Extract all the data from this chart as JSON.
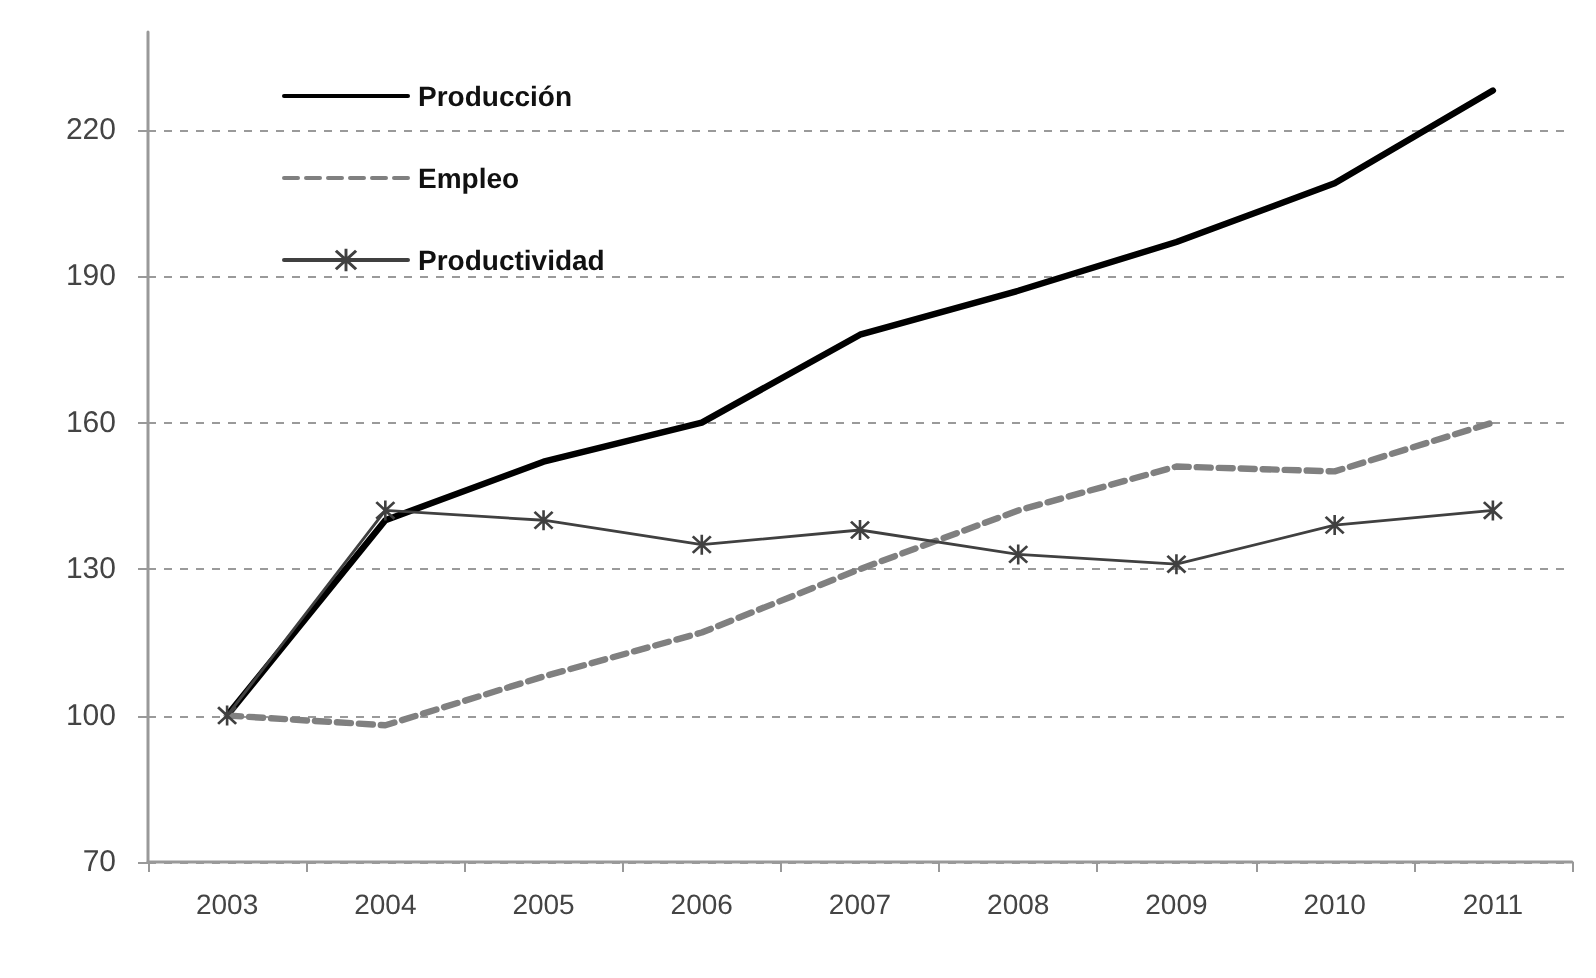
{
  "chart_data": {
    "type": "line",
    "categories": [
      "2003",
      "2004",
      "2005",
      "2006",
      "2007",
      "2008",
      "2009",
      "2010",
      "2011"
    ],
    "ylim": [
      70,
      240
    ],
    "yticks": [
      70,
      100,
      130,
      160,
      190,
      220
    ],
    "grid": "y",
    "legend": "top left",
    "series": [
      {
        "name": "Producción",
        "color": "#000000",
        "line_style": "solid",
        "marker": "none",
        "values": [
          100,
          140,
          152,
          160,
          178,
          187,
          197,
          209,
          228
        ]
      },
      {
        "name": "Empleo",
        "color": "#808080",
        "line_style": "dashed",
        "marker": "none",
        "values": [
          100,
          98,
          108,
          117,
          130,
          142,
          151,
          150,
          160
        ]
      },
      {
        "name": "Productividad",
        "color": "#404040",
        "line_style": "solid",
        "marker": "cross",
        "values": [
          100,
          142,
          140,
          135,
          138,
          133,
          131,
          139,
          142
        ]
      }
    ]
  }
}
